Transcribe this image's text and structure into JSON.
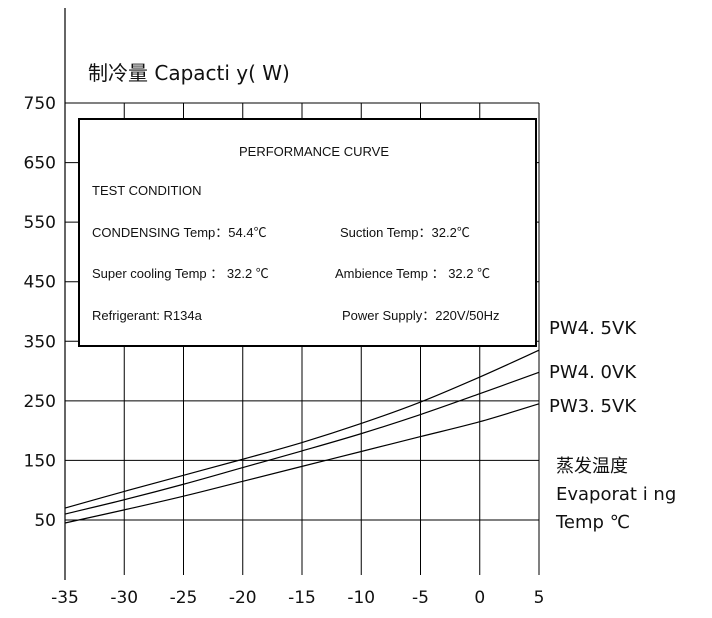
{
  "chart_data": {
    "type": "line",
    "title": "制冷量 Capacti y( W)",
    "x": [
      -35,
      -30,
      -25,
      -20,
      -15,
      -10,
      -5,
      0,
      5
    ],
    "x_tick_labels": [
      "-35",
      "-30",
      "-25",
      "-20",
      "-15",
      "-10",
      "-5",
      "0",
      "5"
    ],
    "y_tick_labels": [
      "750",
      "650",
      "550",
      "450",
      "350",
      "250",
      "150",
      "50"
    ],
    "xlim": [
      -35,
      5
    ],
    "ylim": [
      0,
      750
    ],
    "grid": true,
    "x_axis_title": [
      "蒸发温度",
      "Evaporat i ng",
      "Temp ℃"
    ],
    "series": [
      {
        "name": "PW4. 5VK",
        "values": [
          70,
          98,
          125,
          152,
          180,
          212,
          248,
          290,
          335
        ]
      },
      {
        "name": "PW4. 0VK",
        "values": [
          60,
          84,
          110,
          138,
          166,
          195,
          227,
          262,
          298
        ]
      },
      {
        "name": "PW3. 5VK",
        "values": [
          45,
          67,
          90,
          115,
          140,
          165,
          190,
          215,
          245
        ]
      }
    ]
  },
  "info_box": {
    "title": "PERFORMANCE CURVE",
    "test_condition": "TEST CONDITION",
    "condensing_temp": "CONDENSING Temp：54.4℃",
    "suction_temp": "Suction Temp：32.2℃",
    "super_cooling": "Super  cooling  Temp ：  32.2 ℃",
    "ambience": "Ambience  Temp  ：  32.2 ℃",
    "refrigerant": "Refrigerant:   R134a",
    "power_supply": "Power Supply：220V/50Hz"
  }
}
